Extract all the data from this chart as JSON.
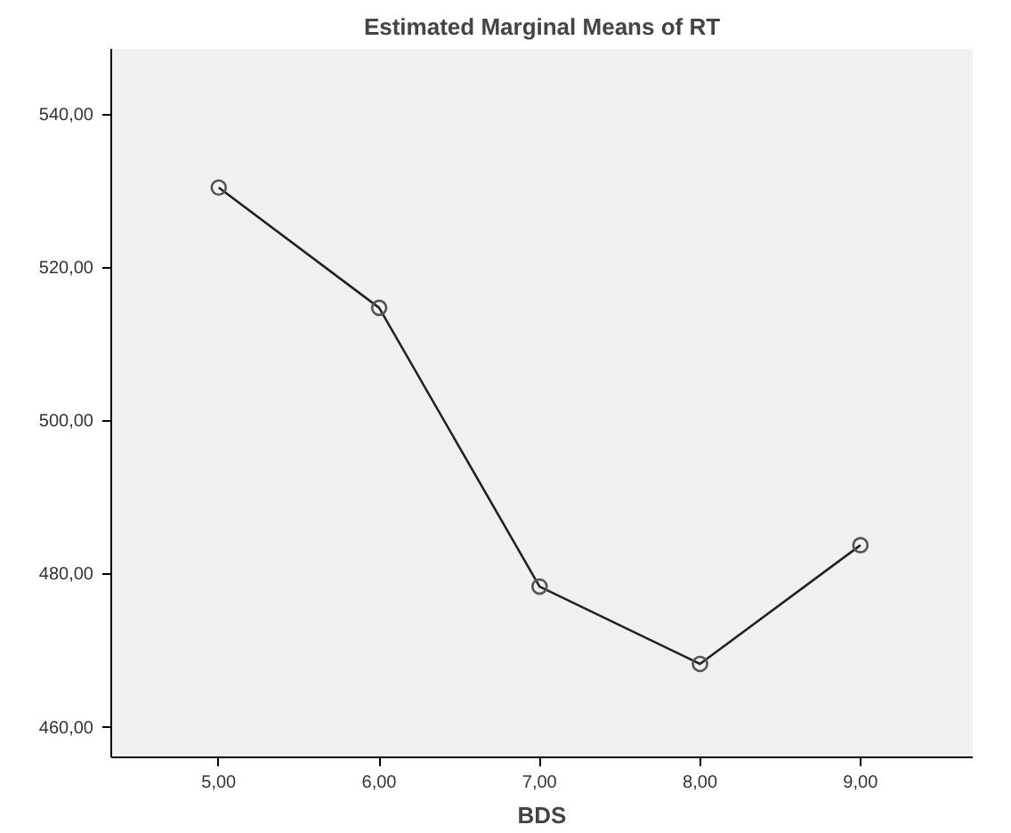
{
  "chart_data": {
    "type": "line",
    "title": "Estimated Marginal Means of RT",
    "xlabel": "BDS",
    "x": [
      5,
      6,
      7,
      8,
      9
    ],
    "series": [
      {
        "color": "#222222",
        "values": [
          530.4,
          514.7,
          478.3,
          468.2,
          483.7
        ]
      }
    ],
    "xlim": [
      4.33,
      9.7
    ],
    "ylim": [
      456,
      548.5
    ],
    "xticks": [
      {
        "value": 5,
        "label": "5,00"
      },
      {
        "value": 6,
        "label": "6,00"
      },
      {
        "value": 7,
        "label": "7,00"
      },
      {
        "value": 8,
        "label": "8,00"
      },
      {
        "value": 9,
        "label": "9,00"
      }
    ],
    "yticks": [
      {
        "value": 460,
        "label": "460,00"
      },
      {
        "value": 480,
        "label": "480,00"
      },
      {
        "value": 500,
        "label": "500,00"
      },
      {
        "value": 520,
        "label": "520,00"
      },
      {
        "value": 540,
        "label": "540,00"
      }
    ],
    "grid": false,
    "marker": "circle",
    "line_style": "solid"
  }
}
